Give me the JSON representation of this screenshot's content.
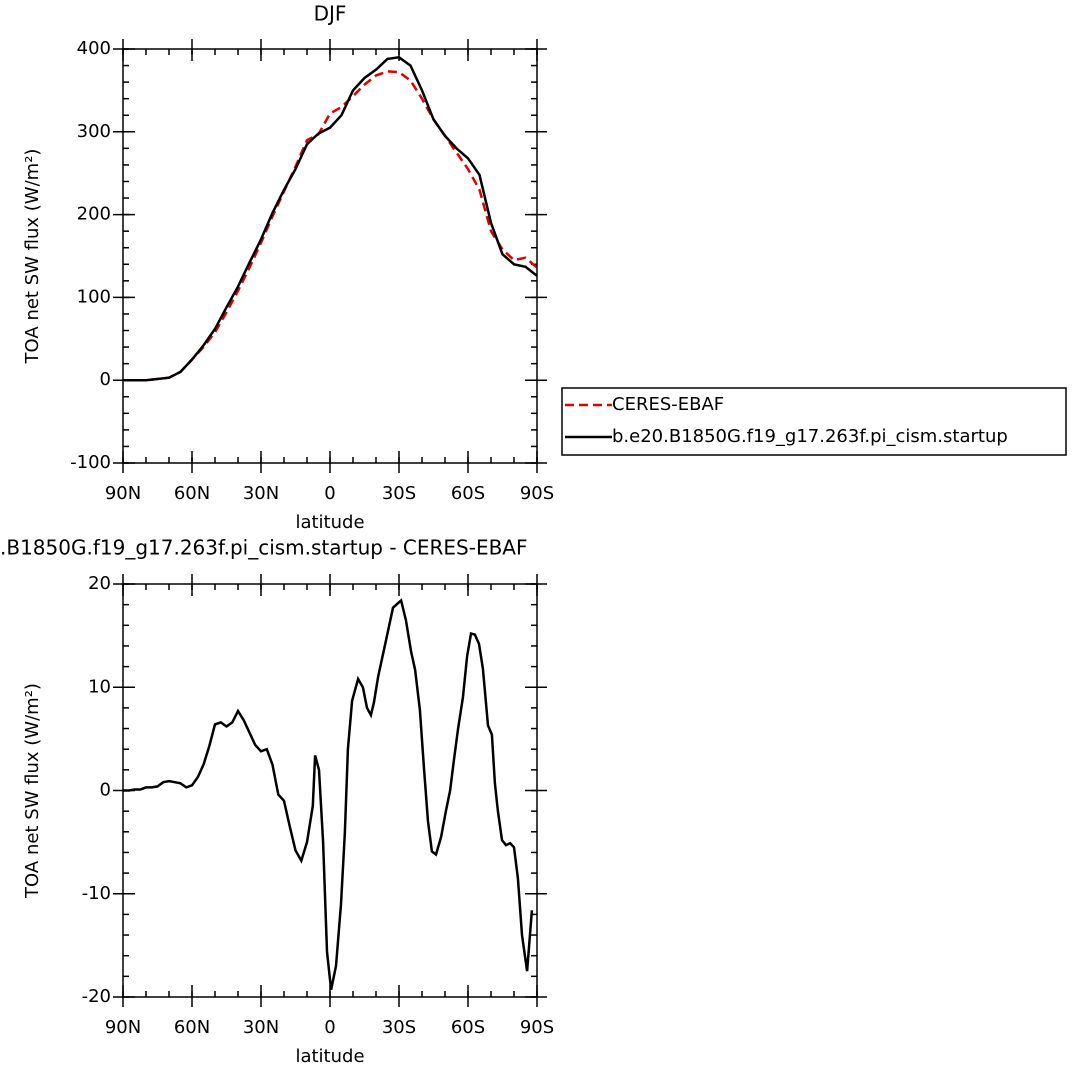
{
  "chart_data": [
    {
      "type": "line",
      "title": "DJF",
      "xlabel": "latitude",
      "ylabel": "TOA net SW flux (W/m²)",
      "x": [
        90,
        80,
        70,
        65,
        60,
        55,
        50,
        45,
        40,
        35,
        30,
        25,
        20,
        15,
        10,
        5,
        0,
        -5,
        -10,
        -15,
        -20,
        -25,
        -30,
        -35,
        -40,
        -45,
        -50,
        -55,
        -60,
        -65,
        -70,
        -75,
        -80,
        -85,
        -90
      ],
      "series": [
        {
          "name": "CERES-EBAF",
          "color": "#e00000",
          "line_style": "dashed",
          "values": [
            0,
            0,
            3,
            10,
            25,
            40,
            58,
            82,
            108,
            136,
            166,
            198,
            228,
            258,
            290,
            297,
            322,
            330,
            343,
            357,
            368,
            373,
            372,
            362,
            340,
            315,
            295,
            275,
            255,
            230,
            180,
            158,
            145,
            148,
            136
          ]
        },
        {
          "name": "b.e20.B1850G.f19_g17.263f.pi_cism.startup",
          "color": "#000000",
          "line_style": "solid",
          "values": [
            0,
            0,
            3,
            10,
            25,
            42,
            62,
            88,
            113,
            142,
            170,
            202,
            230,
            255,
            285,
            298,
            305,
            320,
            350,
            365,
            375,
            388,
            390,
            380,
            350,
            315,
            295,
            280,
            268,
            248,
            190,
            152,
            140,
            137,
            126
          ]
        }
      ],
      "xlim": [
        90,
        -90
      ],
      "xticks": [
        {
          "value": 90,
          "label": "90N"
        },
        {
          "value": 60,
          "label": "60N"
        },
        {
          "value": 30,
          "label": "30N"
        },
        0,
        {
          "value": -30,
          "label": "30S"
        },
        {
          "value": -60,
          "label": "60S"
        },
        {
          "value": -90,
          "label": "90S"
        }
      ],
      "ylim": [
        -100,
        400
      ],
      "yticks": [
        -100,
        0,
        100,
        200,
        300,
        400
      ],
      "legend": "right"
    },
    {
      "type": "line",
      "title": ".B1850G.f19_g17.263f.pi_cism.startup - CERES-EBAF",
      "xlabel": "latitude",
      "ylabel": "TOA net SW flux (W/m²)",
      "x": [
        90,
        87.5,
        85,
        82.5,
        80,
        77.5,
        75,
        72.5,
        70,
        67.5,
        65,
        62.5,
        60,
        57.5,
        55,
        52.5,
        50,
        47.5,
        45,
        42.5,
        40,
        37.5,
        35,
        32.5,
        30,
        27.5,
        25,
        22.5,
        20,
        17.5,
        15,
        12.5,
        10,
        7.5,
        6.5,
        4.8,
        3,
        1.3,
        -0.5,
        -2.6,
        -4.8,
        -6.5,
        -7.8,
        -9.6,
        -12.2,
        -14.3,
        -16.1,
        -17.8,
        -19.1,
        -20.9,
        -24.3,
        -27.4,
        -30.9,
        -33,
        -35.2,
        -37,
        -39.1,
        -40.9,
        -42.6,
        -44.3,
        -46.1,
        -48.3,
        -50.4,
        -52.2,
        -53.9,
        -55.7,
        -57.8,
        -59.6,
        -61.3,
        -63,
        -64.8,
        -66.5,
        -68.7,
        -70.4,
        -71.7,
        -73,
        -74.8,
        -76.5,
        -78.3,
        -80,
        -81.7,
        -83.5,
        -85.7,
        -87.8
      ],
      "values": [
        0,
        0,
        0.1,
        0.1,
        0.3,
        0.3,
        0.4,
        0.8,
        0.9,
        0.8,
        0.7,
        0.3,
        0.5,
        1.3,
        2.5,
        4.3,
        6.4,
        6.6,
        6.2,
        6.6,
        7.7,
        6.8,
        5.6,
        4.4,
        3.8,
        4.0,
        2.5,
        -0.4,
        -1.0,
        -3.5,
        -5.8,
        -6.8,
        -5.0,
        -1.5,
        3.4,
        2.0,
        -5,
        -15.6,
        -19.3,
        -17,
        -11,
        -4,
        4,
        8.7,
        10.8,
        10,
        8,
        7.3,
        8.5,
        11,
        14.5,
        17.7,
        18.4,
        16.5,
        13.5,
        11.7,
        7.8,
        2,
        -3,
        -5.9,
        -6.2,
        -4.5,
        -2,
        0,
        3,
        6,
        9,
        13,
        15.2,
        15.1,
        14.2,
        11.8,
        6.3,
        5.4,
        0.7,
        -2,
        -4.8,
        -5.3,
        -5.1,
        -5.5,
        -8.5,
        -14,
        -17.5,
        -11.6
      ],
      "color": "#000000",
      "xlim": [
        90,
        -90
      ],
      "xticks": [
        {
          "value": 90,
          "label": "90N"
        },
        {
          "value": 60,
          "label": "60N"
        },
        {
          "value": 30,
          "label": "30N"
        },
        0,
        {
          "value": -30,
          "label": "30S"
        },
        {
          "value": -60,
          "label": "60S"
        },
        {
          "value": -90,
          "label": "90S"
        }
      ],
      "ylim": [
        -20,
        20
      ],
      "yticks": [
        -20,
        -10,
        0,
        10,
        20
      ]
    }
  ]
}
